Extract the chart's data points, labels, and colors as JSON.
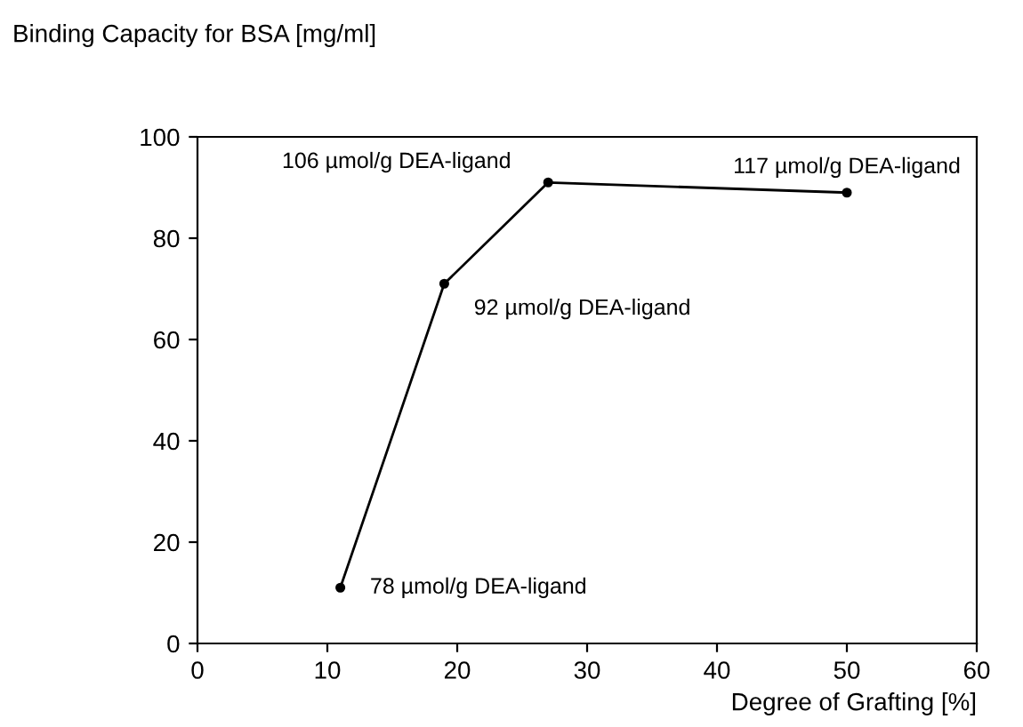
{
  "chart_data": {
    "type": "line",
    "ylabel": "Binding Capacity for BSA [mg/ml]",
    "xlabel": "Degree of Grafting [%]",
    "x": [
      11,
      19,
      27,
      50
    ],
    "series": [
      {
        "color": "#000000",
        "values": [
          11,
          71,
          91,
          89
        ]
      }
    ],
    "xlim": [
      0,
      60
    ],
    "xticks": [
      0,
      10,
      20,
      30,
      40,
      50,
      60
    ],
    "ylim": [
      0,
      100
    ],
    "yticks": [
      0,
      20,
      40,
      60,
      80,
      100
    ],
    "marker": "circle",
    "line_style": "solid",
    "grid": false,
    "annotations": [
      {
        "text": "78 µmol/g DEA-ligand",
        "x": 11,
        "y": 11
      },
      {
        "text": "92 µmol/g DEA-ligand",
        "x": 19,
        "y": 71
      },
      {
        "text": "106 µmol/g DEA-ligand",
        "x": 27,
        "y": 91
      },
      {
        "text": "117 µmol/g DEA-ligand",
        "x": 50,
        "y": 89
      }
    ]
  }
}
